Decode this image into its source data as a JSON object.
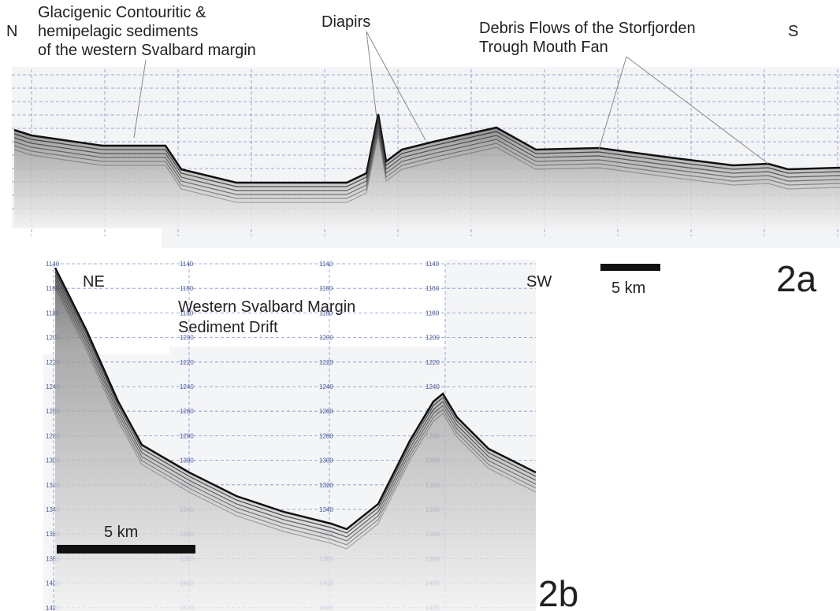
{
  "panel_a": {
    "north": "N",
    "south": "S",
    "annotation_left": [
      "Glacigenic Contouritic &",
      "hemipelagic sediments",
      "of the western Svalbard margin"
    ],
    "annotation_diapirs": "Diapirs",
    "annotation_right": [
      "Debris Flows of the Storfjorden",
      "Trough Mouth Fan"
    ],
    "scale": "5 km",
    "label": "2a"
  },
  "panel_b": {
    "northeast": "NE",
    "southwest": "SW",
    "annotation": [
      "Western Svalbard Margin",
      "Sediment Drift"
    ],
    "scale": "5 km",
    "label": "2b",
    "depths": [
      1140,
      1160,
      1180,
      1200,
      1220,
      1240,
      1260,
      1280,
      1300,
      1320,
      1340,
      1360,
      1380,
      1400,
      1420
    ]
  }
}
